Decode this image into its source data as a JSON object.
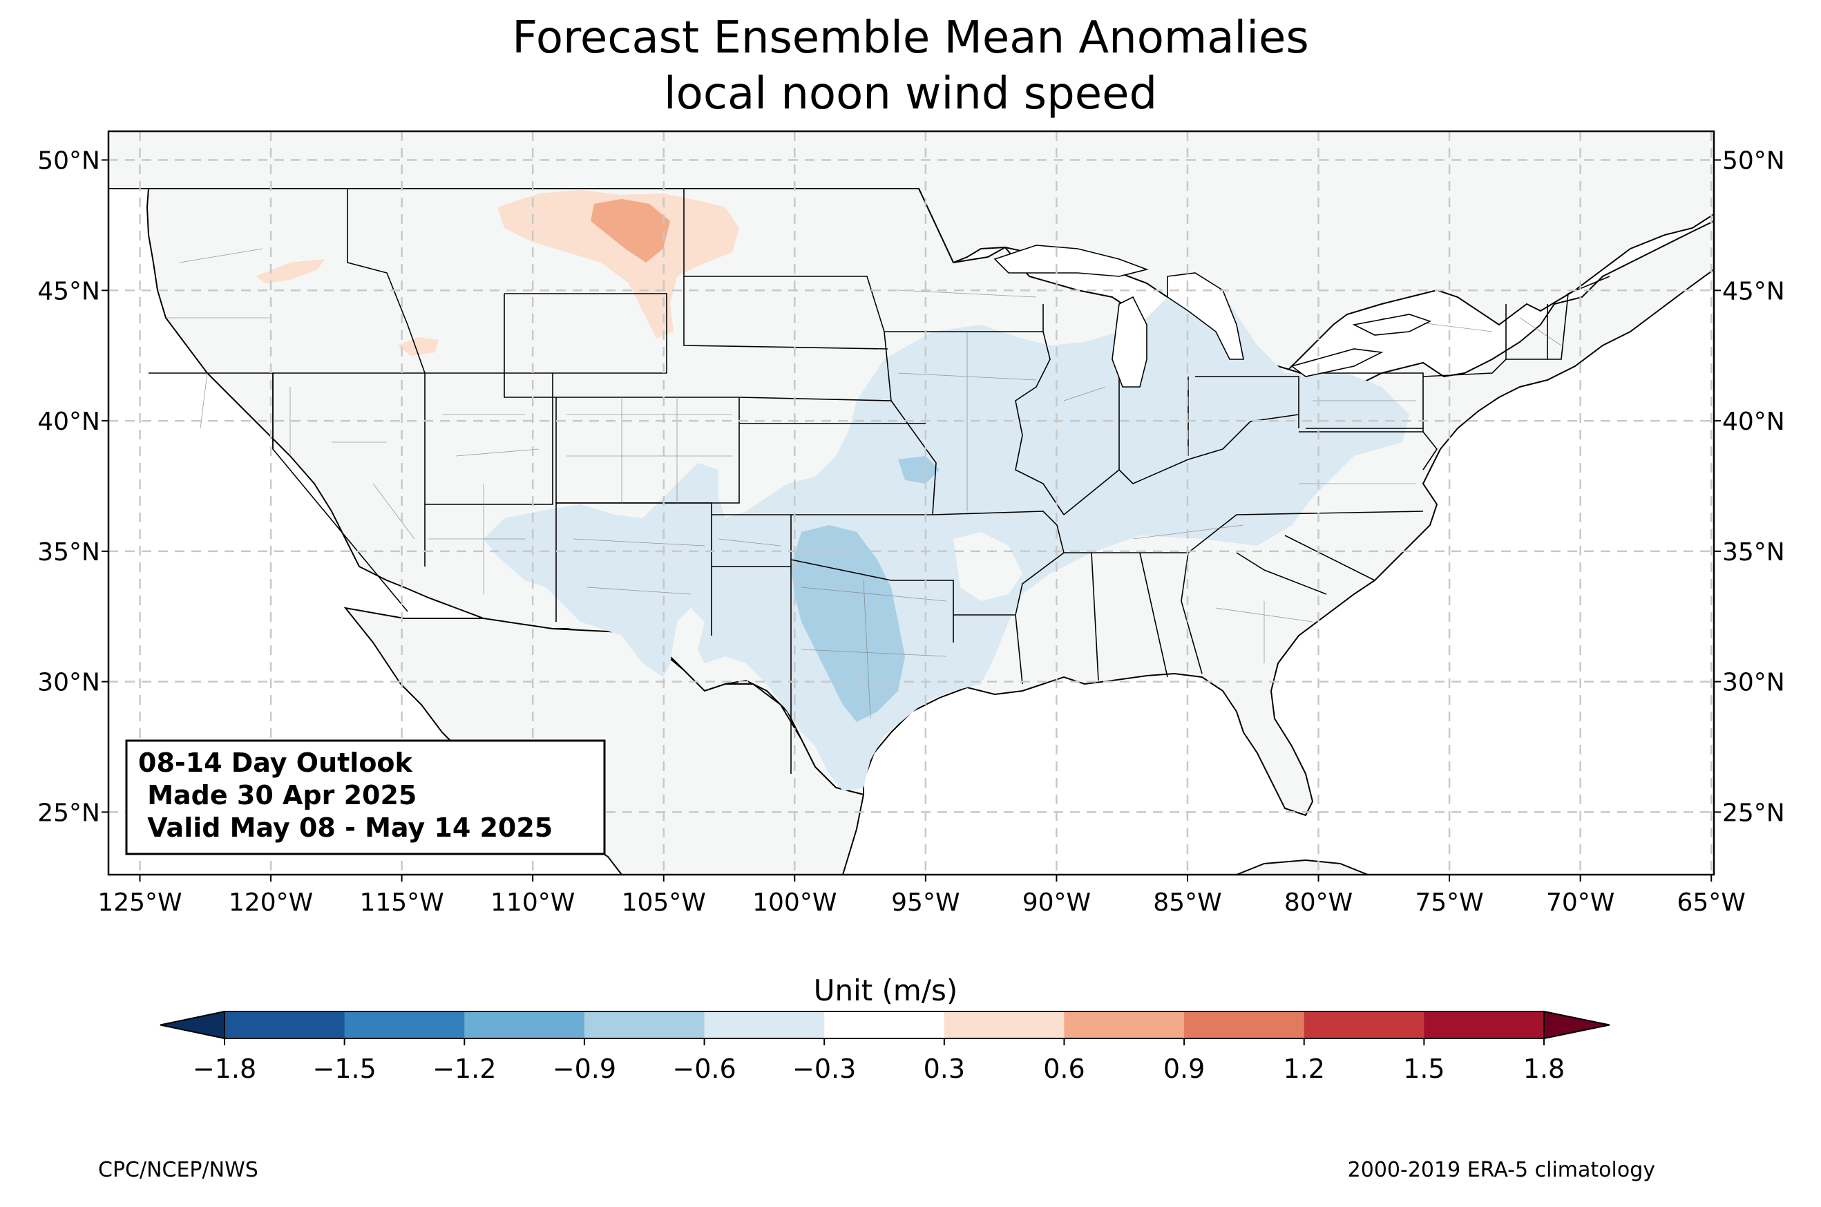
{
  "title": {
    "line1": "Forecast Ensemble Mean Anomalies",
    "line2": "local noon wind speed"
  },
  "map": {
    "lon_range": [
      -126.2,
      -64.9
    ],
    "lat_range": [
      22.6,
      51.1
    ],
    "lat_ticks": [
      {
        "value": 50,
        "label": "50°N"
      },
      {
        "value": 45,
        "label": "45°N"
      },
      {
        "value": 40,
        "label": "40°N"
      },
      {
        "value": 35,
        "label": "35°N"
      },
      {
        "value": 30,
        "label": "30°N"
      },
      {
        "value": 25,
        "label": "25°N"
      }
    ],
    "lon_ticks": [
      {
        "value": -125,
        "label": "125°W"
      },
      {
        "value": -120,
        "label": "120°W"
      },
      {
        "value": -115,
        "label": "115°W"
      },
      {
        "value": -110,
        "label": "110°W"
      },
      {
        "value": -105,
        "label": "105°W"
      },
      {
        "value": -100,
        "label": "100°W"
      },
      {
        "value": -95,
        "label": "95°W"
      },
      {
        "value": -90,
        "label": "90°W"
      },
      {
        "value": -85,
        "label": "85°W"
      },
      {
        "value": -80,
        "label": "80°W"
      },
      {
        "value": -75,
        "label": "75°W"
      },
      {
        "value": -70,
        "label": "70°W"
      },
      {
        "value": -65,
        "label": "65°W"
      }
    ],
    "gridlines": true
  },
  "outlook_box": {
    "line1": "08-14 Day Outlook",
    "line2": " Made 30 Apr 2025",
    "line3": " Valid May 08 - May 14 2025"
  },
  "colorbar": {
    "label": "Unit (m/s)",
    "ticks": [
      "−1.8",
      "−1.5",
      "−1.2",
      "−0.9",
      "−0.6",
      "−0.3",
      "0.3",
      "0.6",
      "0.9",
      "1.2",
      "1.5",
      "1.8"
    ],
    "colors": [
      "#1a5697",
      "#3480bc",
      "#6badd4",
      "#a9cfe4",
      "#dae9f2",
      "#ffffff",
      "#fbdfcf",
      "#f3aa88",
      "#e27a5e",
      "#c4383c",
      "#a1112b"
    ],
    "under_color": "#0c2e5e",
    "over_color": "#6b0021"
  },
  "footer": {
    "left": "CPC/NCEP/NWS",
    "right": "2000-2019 ERA-5 climatology"
  },
  "colors": {
    "land": "#f5f7f7",
    "blue_light": "#dae9f2",
    "blue_mid": "#a9cfe4",
    "red_light": "#fbdfcf",
    "red_mid": "#f3aa88"
  }
}
